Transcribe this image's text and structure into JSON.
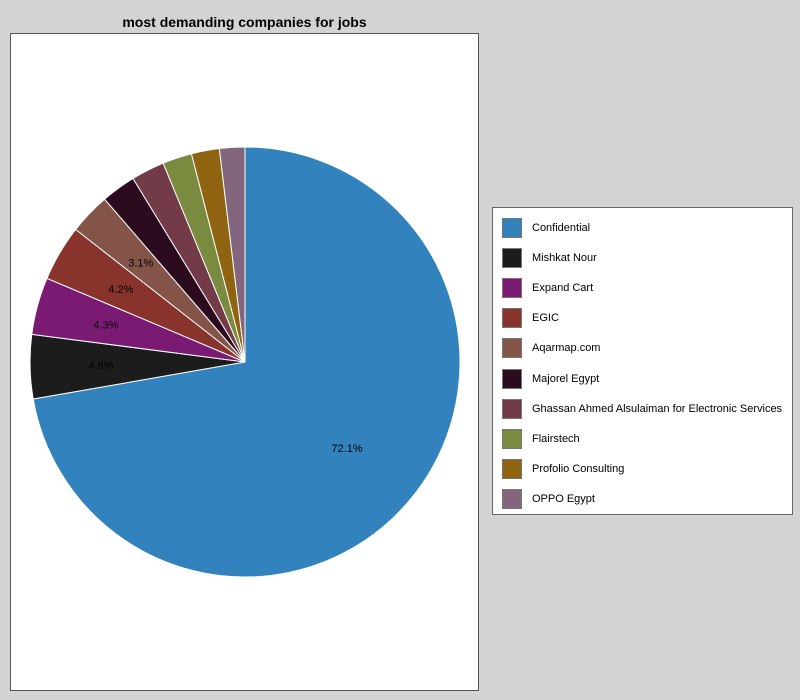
{
  "chart_data": {
    "type": "pie",
    "title": "most demanding companies for jobs",
    "legend_position": "right",
    "slices": [
      {
        "label": "Confidential",
        "value": 72.1,
        "pct_label": "72.1%",
        "color": "#3182bd"
      },
      {
        "label": "Mishkat Nour",
        "value": 4.8,
        "pct_label": "4.8%",
        "color": "#1c1c1c"
      },
      {
        "label": "Expand Cart",
        "value": 4.3,
        "pct_label": "4.3%",
        "color": "#7b1a72"
      },
      {
        "label": "EGIC",
        "value": 4.2,
        "pct_label": "4.2%",
        "color": "#88332b"
      },
      {
        "label": "Aqarmap.com",
        "value": 3.1,
        "pct_label": "3.1%",
        "color": "#845449"
      },
      {
        "label": "Majorel Egypt",
        "value": 2.6,
        "pct_label": "",
        "color": "#2c0b1f"
      },
      {
        "label": "Ghassan Ahmed Alsulaiman for Electronic Services",
        "value": 2.5,
        "pct_label": "",
        "color": "#733a47"
      },
      {
        "label": "Flairstech",
        "value": 2.2,
        "pct_label": "",
        "color": "#7a8a3e"
      },
      {
        "label": "Profolio Consulting",
        "value": 2.1,
        "pct_label": "",
        "color": "#8e6410"
      },
      {
        "label": "OPPO Egypt",
        "value": 1.9,
        "pct_label": "",
        "color": "#83667e"
      }
    ]
  }
}
